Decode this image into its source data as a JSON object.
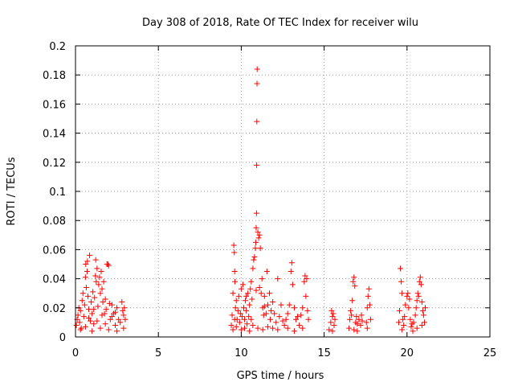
{
  "chart_data": {
    "type": "scatter",
    "title": "Day 308 of 2018, Rate Of TEC Index for receiver wilu",
    "xlabel": "GPS time / hours",
    "ylabel": "ROTI / TECUs",
    "xlim": [
      0,
      25
    ],
    "ylim": [
      0,
      0.2
    ],
    "grid": true,
    "marker": "+",
    "series_color": "#ff0000",
    "x_ticks": [
      {
        "value": 0,
        "label": "0"
      },
      {
        "value": 5,
        "label": "5"
      },
      {
        "value": 10,
        "label": "10"
      },
      {
        "value": 15,
        "label": "15"
      },
      {
        "value": 20,
        "label": "20"
      },
      {
        "value": 25,
        "label": "25"
      }
    ],
    "y_ticks": [
      {
        "value": 0,
        "label": "0"
      },
      {
        "value": 0.02,
        "label": "0.02"
      },
      {
        "value": 0.04,
        "label": "0.04"
      },
      {
        "value": 0.06,
        "label": "0.06"
      },
      {
        "value": 0.08,
        "label": "0.08"
      },
      {
        "value": 0.1,
        "label": "0.1"
      },
      {
        "value": 0.12,
        "label": "0.12"
      },
      {
        "value": 0.14,
        "label": "0.14"
      },
      {
        "value": 0.16,
        "label": "0.16"
      },
      {
        "value": 0.18,
        "label": "0.18"
      },
      {
        "value": 0.2,
        "label": "0.2"
      }
    ],
    "points": [
      [
        0.05,
        0.008
      ],
      [
        0.1,
        0.012
      ],
      [
        0.15,
        0.015
      ],
      [
        0.2,
        0.02
      ],
      [
        0.25,
        0.01
      ],
      [
        0.3,
        0.018
      ],
      [
        0.35,
        0.006
      ],
      [
        0.4,
        0.025
      ],
      [
        0.45,
        0.03
      ],
      [
        0.5,
        0.014
      ],
      [
        0.55,
        0.022
      ],
      [
        0.6,
        0.041
      ],
      [
        0.62,
        0.05
      ],
      [
        0.65,
        0.034
      ],
      [
        0.7,
        0.045
      ],
      [
        0.72,
        0.052
      ],
      [
        0.75,
        0.028
      ],
      [
        0.8,
        0.019
      ],
      [
        0.85,
        0.056
      ],
      [
        0.9,
        0.011
      ],
      [
        0.95,
        0.024
      ],
      [
        1.0,
        0.016
      ],
      [
        1.05,
        0.031
      ],
      [
        1.1,
        0.009
      ],
      [
        1.15,
        0.027
      ],
      [
        1.2,
        0.042
      ],
      [
        1.22,
        0.053
      ],
      [
        1.25,
        0.038
      ],
      [
        1.3,
        0.047
      ],
      [
        1.35,
        0.021
      ],
      [
        1.4,
        0.036
      ],
      [
        1.45,
        0.041
      ],
      [
        1.5,
        0.03
      ],
      [
        1.55,
        0.045
      ],
      [
        1.6,
        0.033
      ],
      [
        1.65,
        0.024
      ],
      [
        1.7,
        0.038
      ],
      [
        1.75,
        0.016
      ],
      [
        1.8,
        0.026
      ],
      [
        1.85,
        0.019
      ],
      [
        1.9,
        0.05
      ],
      [
        1.95,
        0.05
      ],
      [
        2.0,
        0.049
      ],
      [
        2.05,
        0.023
      ],
      [
        2.1,
        0.012
      ],
      [
        2.2,
        0.022
      ],
      [
        2.3,
        0.016
      ],
      [
        2.4,
        0.008
      ],
      [
        2.5,
        0.02
      ],
      [
        2.6,
        0.012
      ],
      [
        2.7,
        0.01
      ],
      [
        2.8,
        0.024
      ],
      [
        2.85,
        0.018
      ],
      [
        2.9,
        0.015
      ],
      [
        2.95,
        0.02
      ],
      [
        3.0,
        0.012
      ],
      [
        0.3,
        0.005
      ],
      [
        0.6,
        0.007
      ],
      [
        1.0,
        0.004
      ],
      [
        1.5,
        0.006
      ],
      [
        2.0,
        0.005
      ],
      [
        2.5,
        0.004
      ],
      [
        2.9,
        0.006
      ],
      [
        0.8,
        0.013
      ],
      [
        1.3,
        0.011
      ],
      [
        1.8,
        0.009
      ],
      [
        2.2,
        0.014
      ],
      [
        1.1,
        0.019
      ],
      [
        1.6,
        0.015
      ],
      [
        2.4,
        0.017
      ],
      [
        9.4,
        0.008
      ],
      [
        9.45,
        0.015
      ],
      [
        9.5,
        0.03
      ],
      [
        9.55,
        0.063
      ],
      [
        9.58,
        0.058
      ],
      [
        9.6,
        0.045
      ],
      [
        9.62,
        0.038
      ],
      [
        9.65,
        0.02
      ],
      [
        9.7,
        0.025
      ],
      [
        9.75,
        0.012
      ],
      [
        9.8,
        0.018
      ],
      [
        9.85,
        0.028
      ],
      [
        9.9,
        0.01
      ],
      [
        9.95,
        0.016
      ],
      [
        10.0,
        0.033
      ],
      [
        10.05,
        0.014
      ],
      [
        10.1,
        0.036
      ],
      [
        10.15,
        0.02
      ],
      [
        10.2,
        0.012
      ],
      [
        10.25,
        0.025
      ],
      [
        10.3,
        0.018
      ],
      [
        10.35,
        0.009
      ],
      [
        10.4,
        0.03
      ],
      [
        10.45,
        0.014
      ],
      [
        10.5,
        0.022
      ],
      [
        10.55,
        0.033
      ],
      [
        10.6,
        0.012
      ],
      [
        10.65,
        0.026
      ],
      [
        10.7,
        0.047
      ],
      [
        10.75,
        0.053
      ],
      [
        10.8,
        0.055
      ],
      [
        10.85,
        0.061
      ],
      [
        10.88,
        0.065
      ],
      [
        10.9,
        0.075
      ],
      [
        10.92,
        0.085
      ],
      [
        10.93,
        0.118
      ],
      [
        10.94,
        0.148
      ],
      [
        10.95,
        0.174
      ],
      [
        10.96,
        0.184
      ],
      [
        11.0,
        0.072
      ],
      [
        11.05,
        0.068
      ],
      [
        11.1,
        0.07
      ],
      [
        11.15,
        0.061
      ],
      [
        11.2,
        0.03
      ],
      [
        11.25,
        0.04
      ],
      [
        11.3,
        0.02
      ],
      [
        11.35,
        0.015
      ],
      [
        11.4,
        0.028
      ],
      [
        11.5,
        0.016
      ],
      [
        11.55,
        0.045
      ],
      [
        11.6,
        0.022
      ],
      [
        11.7,
        0.03
      ],
      [
        11.75,
        0.012
      ],
      [
        11.8,
        0.018
      ],
      [
        11.9,
        0.024
      ],
      [
        12.0,
        0.016
      ],
      [
        12.1,
        0.01
      ],
      [
        12.2,
        0.04
      ],
      [
        12.3,
        0.014
      ],
      [
        12.4,
        0.022
      ],
      [
        12.6,
        0.008
      ],
      [
        12.7,
        0.012
      ],
      [
        12.8,
        0.016
      ],
      [
        12.9,
        0.022
      ],
      [
        13.0,
        0.045
      ],
      [
        13.05,
        0.051
      ],
      [
        13.1,
        0.036
      ],
      [
        13.2,
        0.02
      ],
      [
        13.3,
        0.012
      ],
      [
        13.5,
        0.008
      ],
      [
        13.6,
        0.015
      ],
      [
        13.7,
        0.02
      ],
      [
        13.8,
        0.038
      ],
      [
        13.85,
        0.042
      ],
      [
        13.9,
        0.028
      ],
      [
        13.95,
        0.04
      ],
      [
        14.0,
        0.018
      ],
      [
        14.05,
        0.012
      ],
      [
        9.5,
        0.005
      ],
      [
        9.7,
        0.007
      ],
      [
        10.0,
        0.005
      ],
      [
        10.2,
        0.006
      ],
      [
        10.5,
        0.004
      ],
      [
        10.7,
        0.008
      ],
      [
        11.0,
        0.006
      ],
      [
        11.3,
        0.005
      ],
      [
        11.6,
        0.007
      ],
      [
        11.9,
        0.006
      ],
      [
        12.2,
        0.005
      ],
      [
        12.8,
        0.006
      ],
      [
        13.2,
        0.004
      ],
      [
        13.7,
        0.006
      ],
      [
        9.6,
        0.012
      ],
      [
        10.3,
        0.028
      ],
      [
        10.9,
        0.032
      ],
      [
        11.4,
        0.021
      ],
      [
        12.5,
        0.011
      ],
      [
        13.4,
        0.014
      ],
      [
        10.6,
        0.038
      ],
      [
        11.1,
        0.034
      ],
      [
        15.3,
        0.005
      ],
      [
        15.4,
        0.01
      ],
      [
        15.45,
        0.018
      ],
      [
        15.5,
        0.014
      ],
      [
        15.55,
        0.016
      ],
      [
        15.6,
        0.008
      ],
      [
        15.65,
        0.012
      ],
      [
        15.5,
        0.004
      ],
      [
        16.5,
        0.006
      ],
      [
        16.55,
        0.012
      ],
      [
        16.6,
        0.018
      ],
      [
        16.65,
        0.015
      ],
      [
        16.7,
        0.025
      ],
      [
        16.75,
        0.038
      ],
      [
        16.8,
        0.041
      ],
      [
        16.85,
        0.035
      ],
      [
        16.9,
        0.01
      ],
      [
        16.95,
        0.014
      ],
      [
        17.0,
        0.009
      ],
      [
        17.1,
        0.012
      ],
      [
        17.2,
        0.008
      ],
      [
        17.25,
        0.015
      ],
      [
        17.3,
        0.011
      ],
      [
        17.55,
        0.01
      ],
      [
        17.6,
        0.02
      ],
      [
        17.65,
        0.028
      ],
      [
        17.7,
        0.033
      ],
      [
        17.75,
        0.022
      ],
      [
        17.8,
        0.012
      ],
      [
        17.6,
        0.006
      ],
      [
        16.8,
        0.005
      ],
      [
        17.0,
        0.004
      ],
      [
        19.5,
        0.01
      ],
      [
        19.55,
        0.018
      ],
      [
        19.6,
        0.047
      ],
      [
        19.65,
        0.038
      ],
      [
        19.7,
        0.03
      ],
      [
        19.75,
        0.012
      ],
      [
        19.8,
        0.008
      ],
      [
        19.85,
        0.014
      ],
      [
        19.9,
        0.022
      ],
      [
        20.0,
        0.028
      ],
      [
        20.05,
        0.03
      ],
      [
        20.1,
        0.02
      ],
      [
        20.15,
        0.026
      ],
      [
        20.2,
        0.012
      ],
      [
        20.25,
        0.007
      ],
      [
        20.3,
        0.009
      ],
      [
        20.35,
        0.004
      ],
      [
        20.4,
        0.01
      ],
      [
        20.5,
        0.015
      ],
      [
        20.55,
        0.02
      ],
      [
        20.6,
        0.025
      ],
      [
        20.65,
        0.03
      ],
      [
        20.7,
        0.028
      ],
      [
        20.75,
        0.038
      ],
      [
        20.8,
        0.041
      ],
      [
        20.85,
        0.036
      ],
      [
        20.9,
        0.024
      ],
      [
        20.95,
        0.018
      ],
      [
        21.0,
        0.015
      ],
      [
        21.05,
        0.01
      ],
      [
        21.1,
        0.02
      ],
      [
        20.6,
        0.006
      ],
      [
        20.9,
        0.008
      ],
      [
        19.7,
        0.005
      ]
    ]
  }
}
